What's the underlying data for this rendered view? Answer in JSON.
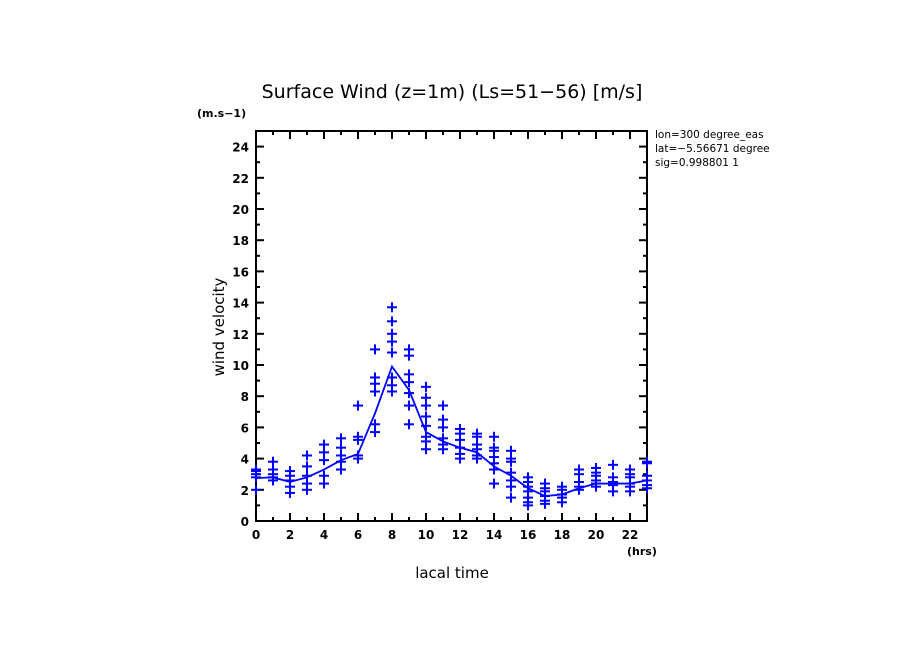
{
  "chart_data": {
    "type": "scatter",
    "title": "Surface Wind (z=1m) (Ls=51−56) [m/s]",
    "xlabel": "lacal time",
    "ylabel": "wind velocity",
    "x_units": "(hrs)",
    "y_units": "(m.s−1)",
    "xlim": [
      0,
      23
    ],
    "ylim": [
      0,
      25
    ],
    "x_ticks": [
      0,
      2,
      4,
      6,
      8,
      10,
      12,
      14,
      16,
      18,
      20,
      22
    ],
    "x_tick_labels": [
      "0",
      "2",
      "4",
      "6",
      "8",
      "10",
      "12",
      "14",
      "16",
      "18",
      "20",
      "22"
    ],
    "y_ticks": [
      0,
      2,
      4,
      6,
      8,
      10,
      12,
      14,
      16,
      18,
      20,
      22,
      24
    ],
    "y_tick_labels": [
      "0",
      "2",
      "4",
      "6",
      "8",
      "10",
      "12",
      "14",
      "16",
      "18",
      "20",
      "22",
      "24"
    ],
    "grid": false,
    "annotations": [
      "lon=300 degree_eas",
      "lat=−5.56671 degree",
      "sig=0.998801 1"
    ],
    "color": "#0000ff",
    "series": [
      {
        "name": "mean",
        "type": "line",
        "x": [
          0,
          1,
          2,
          3,
          4,
          5,
          6,
          7,
          8,
          9,
          10,
          11,
          12,
          13,
          14,
          15,
          16,
          17,
          18,
          19,
          20,
          21,
          22,
          23
        ],
        "y": [
          2.75,
          2.8,
          2.5,
          2.8,
          3.3,
          3.9,
          4.3,
          6.9,
          9.9,
          8.4,
          5.7,
          5.1,
          4.7,
          4.4,
          3.5,
          2.9,
          2.1,
          1.6,
          1.7,
          2.1,
          2.4,
          2.4,
          2.4,
          2.6
        ]
      },
      {
        "name": "samples",
        "type": "scatter",
        "marker": "+",
        "points": [
          [
            0,
            [
              3.3,
              3.2,
              3.0,
              2.8,
              2.0
            ]
          ],
          [
            1,
            [
              3.8,
              3.3,
              3.0,
              2.8,
              2.6
            ]
          ],
          [
            2,
            [
              3.2,
              2.9,
              2.6,
              2.2,
              1.8
            ]
          ],
          [
            3,
            [
              4.2,
              3.5,
              2.9,
              2.4,
              2.0
            ]
          ],
          [
            4,
            [
              4.9,
              4.4,
              3.9,
              2.9,
              2.4
            ]
          ],
          [
            5,
            [
              5.3,
              4.7,
              4.2,
              3.8,
              3.3
            ]
          ],
          [
            6,
            [
              7.4,
              5.4,
              5.2,
              4.2,
              4.0
            ]
          ],
          [
            7,
            [
              11.0,
              9.2,
              8.8,
              8.3,
              6.2,
              5.7
            ]
          ],
          [
            8,
            [
              13.7,
              12.8,
              12.0,
              11.5,
              10.8,
              9.2,
              8.7,
              8.3
            ]
          ],
          [
            9,
            [
              11.0,
              10.6,
              9.4,
              8.9,
              8.2,
              7.4,
              6.2
            ]
          ],
          [
            10,
            [
              8.6,
              7.9,
              7.4,
              6.7,
              6.1,
              5.4,
              5.1,
              4.6
            ]
          ],
          [
            11,
            [
              7.4,
              6.5,
              6.0,
              5.3,
              4.9,
              4.6
            ]
          ],
          [
            12,
            [
              5.9,
              5.6,
              5.2,
              4.7,
              4.3,
              4.0
            ]
          ],
          [
            13,
            [
              5.6,
              5.4,
              4.9,
              4.6,
              4.2,
              4.0
            ]
          ],
          [
            14,
            [
              5.4,
              4.7,
              4.5,
              4.1,
              3.7,
              3.3,
              2.4
            ]
          ],
          [
            15,
            [
              4.5,
              4.0,
              3.8,
              3.1,
              2.6,
              2.2,
              1.5
            ]
          ],
          [
            16,
            [
              2.8,
              2.5,
              2.2,
              1.9,
              1.5,
              1.2,
              1.0
            ]
          ],
          [
            17,
            [
              2.4,
              2.1,
              1.9,
              1.6,
              1.3,
              1.1
            ]
          ],
          [
            18,
            [
              2.2,
              2.0,
              1.7,
              1.5,
              1.2
            ]
          ],
          [
            19,
            [
              3.3,
              3.0,
              2.5,
              2.2,
              2.0
            ]
          ],
          [
            20,
            [
              3.4,
              3.1,
              2.9,
              2.6,
              2.4,
              2.2
            ]
          ],
          [
            21,
            [
              3.6,
              2.8,
              2.5,
              2.3,
              1.9
            ]
          ],
          [
            22,
            [
              3.3,
              3.0,
              2.8,
              2.4,
              2.2,
              1.9
            ]
          ],
          [
            23,
            [
              3.8,
              3.7,
              2.9,
              2.6,
              2.3,
              2.1
            ]
          ]
        ]
      }
    ]
  }
}
